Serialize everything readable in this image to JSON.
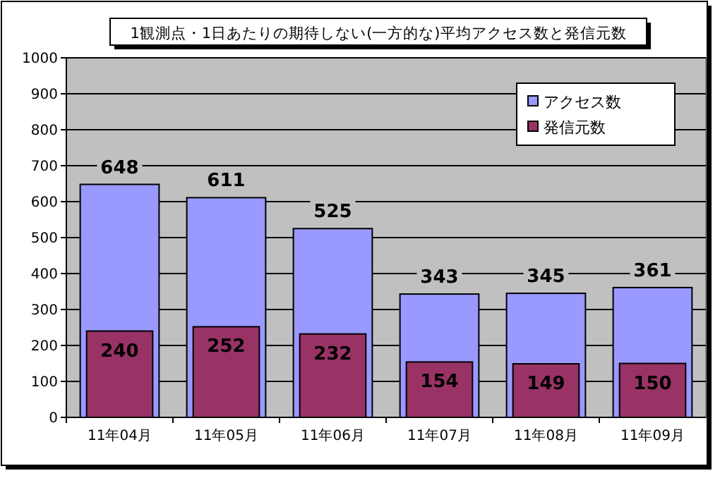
{
  "chart_data": {
    "type": "bar",
    "title": "1観測点・1日あたりの期待しない(一方的な)平均アクセス数と発信元数",
    "categories": [
      "11年04月",
      "11年05月",
      "11年06月",
      "11年07月",
      "11年08月",
      "11年09月"
    ],
    "series": [
      {
        "name": "アクセス数",
        "color": "#9999ff",
        "values": [
          648,
          611,
          525,
          343,
          345,
          361
        ]
      },
      {
        "name": "発信元数",
        "color": "#993366",
        "values": [
          240,
          252,
          232,
          154,
          149,
          150
        ]
      }
    ],
    "ylim": [
      0,
      1000
    ],
    "yticks": [
      0,
      100,
      200,
      300,
      400,
      500,
      600,
      700,
      800,
      900,
      1000
    ],
    "grid": "y",
    "legend": "top right",
    "data_labels": true
  }
}
